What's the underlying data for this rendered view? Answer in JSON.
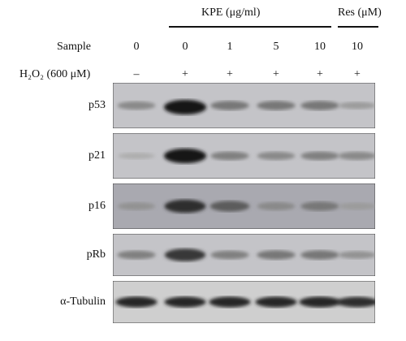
{
  "header": {
    "kpe_group_label": "KPE (μg/ml)",
    "res_group_label": "Res (μM)",
    "sample_label": "Sample",
    "h2o2_label": "H₂O₂ (600 μM)"
  },
  "columns": [
    {
      "sample": "0",
      "h2o2": "–"
    },
    {
      "sample": "0",
      "h2o2": "+"
    },
    {
      "sample": "1",
      "h2o2": "+"
    },
    {
      "sample": "5",
      "h2o2": "+"
    },
    {
      "sample": "10",
      "h2o2": "+"
    },
    {
      "sample": "10",
      "h2o2": "+"
    }
  ],
  "blots": [
    {
      "label": "p53",
      "intensity": [
        0.35,
        1.0,
        0.45,
        0.45,
        0.45,
        0.25
      ]
    },
    {
      "label": "p21",
      "intensity": [
        0.15,
        1.0,
        0.4,
        0.35,
        0.4,
        0.35
      ]
    },
    {
      "label": "p16",
      "intensity": [
        0.3,
        0.85,
        0.6,
        0.35,
        0.45,
        0.25
      ]
    },
    {
      "label": "pRb",
      "intensity": [
        0.4,
        0.8,
        0.4,
        0.45,
        0.45,
        0.3
      ]
    },
    {
      "label": "α-Tubulin",
      "intensity": [
        0.9,
        0.9,
        0.9,
        0.9,
        0.9,
        0.85
      ]
    }
  ],
  "colors": {
    "text": "#111111",
    "panel_bg": "#bdbdbd",
    "band": "#1a1a1a"
  }
}
